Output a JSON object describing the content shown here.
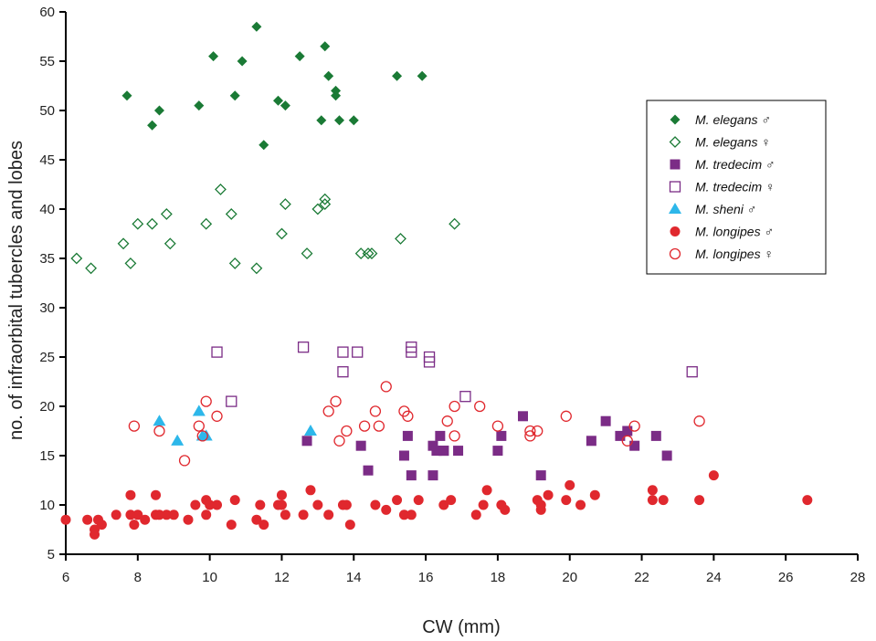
{
  "chart_data": {
    "type": "scatter",
    "xlabel": "CW (mm)",
    "ylabel": "no. of infraorbital tubercles and lobes",
    "xlim": [
      6,
      28
    ],
    "ylim": [
      5,
      60
    ],
    "xticks": [
      6,
      8,
      10,
      12,
      14,
      16,
      18,
      20,
      22,
      24,
      26,
      28
    ],
    "yticks": [
      5,
      10,
      15,
      20,
      25,
      30,
      35,
      40,
      45,
      50,
      55,
      60
    ],
    "grid": false,
    "legend_position": "right",
    "series": [
      {
        "name": "M. elegans ♂",
        "marker": "diamond-filled",
        "color": "#1a7a35",
        "points": [
          [
            7.7,
            51.5
          ],
          [
            8.4,
            48.5
          ],
          [
            8.6,
            50
          ],
          [
            9.7,
            50.5
          ],
          [
            10.1,
            55.5
          ],
          [
            10.7,
            51.5
          ],
          [
            10.9,
            55
          ],
          [
            11.3,
            58.5
          ],
          [
            11.5,
            46.5
          ],
          [
            11.9,
            51
          ],
          [
            12.1,
            50.5
          ],
          [
            12.5,
            55.5
          ],
          [
            13.1,
            49
          ],
          [
            13.2,
            56.5
          ],
          [
            13.3,
            53.5
          ],
          [
            13.5,
            52
          ],
          [
            13.5,
            51.5
          ],
          [
            13.6,
            49
          ],
          [
            14.0,
            49
          ],
          [
            15.2,
            53.5
          ],
          [
            15.9,
            53.5
          ]
        ]
      },
      {
        "name": "M. elegans ♀",
        "marker": "diamond-open",
        "color": "#1a7a35",
        "points": [
          [
            6.3,
            35
          ],
          [
            6.7,
            34
          ],
          [
            7.6,
            36.5
          ],
          [
            7.8,
            34.5
          ],
          [
            8.0,
            38.5
          ],
          [
            8.4,
            38.5
          ],
          [
            8.8,
            39.5
          ],
          [
            8.9,
            36.5
          ],
          [
            9.9,
            38.5
          ],
          [
            10.3,
            42
          ],
          [
            10.6,
            39.5
          ],
          [
            10.7,
            34.5
          ],
          [
            11.3,
            34
          ],
          [
            12.0,
            37.5
          ],
          [
            12.1,
            40.5
          ],
          [
            12.7,
            35.5
          ],
          [
            13.0,
            40
          ],
          [
            13.2,
            40.5
          ],
          [
            13.2,
            41
          ],
          [
            14.2,
            35.5
          ],
          [
            14.4,
            35.5
          ],
          [
            14.5,
            35.5
          ],
          [
            15.3,
            37
          ],
          [
            16.8,
            38.5
          ]
        ]
      },
      {
        "name": "M. tredecim ♂",
        "marker": "square-filled",
        "color": "#7b2c86",
        "points": [
          [
            12.7,
            16.5
          ],
          [
            14.2,
            16
          ],
          [
            14.4,
            13.5
          ],
          [
            15.4,
            15
          ],
          [
            15.5,
            17
          ],
          [
            15.6,
            13
          ],
          [
            16.2,
            16
          ],
          [
            16.2,
            13
          ],
          [
            16.3,
            15.5
          ],
          [
            16.4,
            17
          ],
          [
            16.5,
            15.5
          ],
          [
            16.5,
            15.5
          ],
          [
            16.9,
            15.5
          ],
          [
            18.0,
            15.5
          ],
          [
            18.1,
            17
          ],
          [
            18.7,
            19
          ],
          [
            19.2,
            13
          ],
          [
            20.6,
            16.5
          ],
          [
            21.0,
            18.5
          ],
          [
            21.4,
            17
          ],
          [
            21.6,
            17.5
          ],
          [
            21.8,
            16
          ],
          [
            22.4,
            17
          ],
          [
            22.7,
            15
          ]
        ]
      },
      {
        "name": "M. tredecim ♀",
        "marker": "square-open",
        "color": "#7b2c86",
        "points": [
          [
            10.2,
            25.5
          ],
          [
            10.6,
            20.5
          ],
          [
            12.6,
            26
          ],
          [
            13.7,
            25.5
          ],
          [
            13.7,
            23.5
          ],
          [
            14.1,
            25.5
          ],
          [
            15.6,
            26
          ],
          [
            15.6,
            25.5
          ],
          [
            16.1,
            24.5
          ],
          [
            16.1,
            25
          ],
          [
            17.1,
            21
          ],
          [
            23.4,
            23.5
          ]
        ]
      },
      {
        "name": "M. sheni ♂",
        "marker": "triangle-filled",
        "color": "#2db7ea",
        "points": [
          [
            8.6,
            18.5
          ],
          [
            9.1,
            16.5
          ],
          [
            9.7,
            19.5
          ],
          [
            9.8,
            17
          ],
          [
            9.9,
            17
          ],
          [
            12.8,
            17.5
          ]
        ]
      },
      {
        "name": "M. longipes ♂",
        "marker": "circle-filled",
        "color": "#e0282e",
        "points": [
          [
            6.0,
            8.5
          ],
          [
            6.6,
            8.5
          ],
          [
            6.8,
            7.5
          ],
          [
            6.8,
            7
          ],
          [
            6.9,
            8.5
          ],
          [
            7.0,
            8
          ],
          [
            7.4,
            9
          ],
          [
            7.8,
            11
          ],
          [
            7.8,
            9
          ],
          [
            7.9,
            8
          ],
          [
            8.0,
            9
          ],
          [
            8.2,
            8.5
          ],
          [
            8.5,
            11
          ],
          [
            8.5,
            9
          ],
          [
            8.6,
            9
          ],
          [
            8.8,
            9
          ],
          [
            9.0,
            9
          ],
          [
            9.4,
            8.5
          ],
          [
            9.6,
            10
          ],
          [
            9.9,
            9
          ],
          [
            9.9,
            10.5
          ],
          [
            10.0,
            10
          ],
          [
            10.2,
            10
          ],
          [
            10.6,
            8
          ],
          [
            10.7,
            10.5
          ],
          [
            11.3,
            8.5
          ],
          [
            11.4,
            10
          ],
          [
            11.5,
            8
          ],
          [
            11.9,
            10
          ],
          [
            12.0,
            11
          ],
          [
            12.0,
            10
          ],
          [
            12.1,
            9
          ],
          [
            12.6,
            9
          ],
          [
            12.8,
            11.5
          ],
          [
            13.0,
            10
          ],
          [
            13.3,
            9
          ],
          [
            13.7,
            10
          ],
          [
            13.8,
            10
          ],
          [
            13.9,
            8
          ],
          [
            14.6,
            10
          ],
          [
            14.9,
            9.5
          ],
          [
            15.2,
            10.5
          ],
          [
            15.4,
            9
          ],
          [
            15.6,
            9
          ],
          [
            15.8,
            10.5
          ],
          [
            16.5,
            10
          ],
          [
            16.7,
            10.5
          ],
          [
            17.4,
            9
          ],
          [
            17.6,
            10
          ],
          [
            17.7,
            11.5
          ],
          [
            18.1,
            10
          ],
          [
            18.2,
            9.5
          ],
          [
            19.1,
            10.5
          ],
          [
            19.2,
            9.5
          ],
          [
            19.2,
            10
          ],
          [
            19.4,
            11
          ],
          [
            19.9,
            10.5
          ],
          [
            20.0,
            12
          ],
          [
            20.3,
            10
          ],
          [
            20.7,
            11
          ],
          [
            22.3,
            11.5
          ],
          [
            22.3,
            10.5
          ],
          [
            22.6,
            10.5
          ],
          [
            23.6,
            10.5
          ],
          [
            24.0,
            13
          ],
          [
            26.6,
            10.5
          ]
        ]
      },
      {
        "name": "M. longipes ♀",
        "marker": "circle-open",
        "color": "#e0282e",
        "points": [
          [
            7.9,
            18
          ],
          [
            8.6,
            17.5
          ],
          [
            9.3,
            14.5
          ],
          [
            9.7,
            18
          ],
          [
            9.8,
            17
          ],
          [
            9.9,
            20.5
          ],
          [
            10.2,
            19
          ],
          [
            13.3,
            19.5
          ],
          [
            13.5,
            20.5
          ],
          [
            13.6,
            16.5
          ],
          [
            13.8,
            17.5
          ],
          [
            14.3,
            18
          ],
          [
            14.6,
            19.5
          ],
          [
            14.7,
            18
          ],
          [
            14.9,
            22
          ],
          [
            15.4,
            19.5
          ],
          [
            15.5,
            19
          ],
          [
            16.6,
            18.5
          ],
          [
            16.8,
            20
          ],
          [
            16.8,
            17
          ],
          [
            17.5,
            20
          ],
          [
            18.0,
            18
          ],
          [
            18.9,
            17.5
          ],
          [
            18.9,
            17
          ],
          [
            19.1,
            17.5
          ],
          [
            19.9,
            19
          ],
          [
            21.6,
            16.5
          ],
          [
            21.8,
            18
          ],
          [
            23.6,
            18.5
          ]
        ]
      }
    ]
  }
}
